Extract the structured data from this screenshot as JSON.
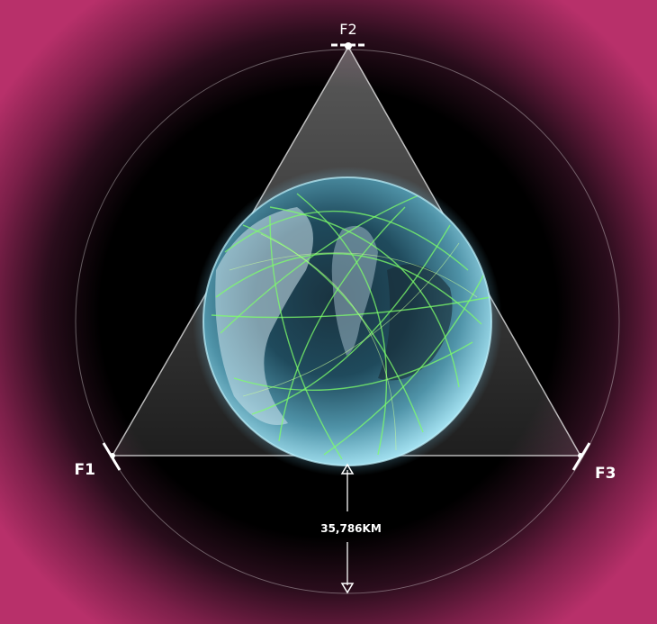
{
  "labels": {
    "f1": "F1",
    "f2": "F2",
    "f3": "F3",
    "altitude": "35,786KM"
  },
  "colors": {
    "background": "#b02d63",
    "space": "#000000",
    "earth_glow": "#7fd9ff",
    "route_lines": "#7dff6a",
    "coverage": "#ffffff"
  }
}
